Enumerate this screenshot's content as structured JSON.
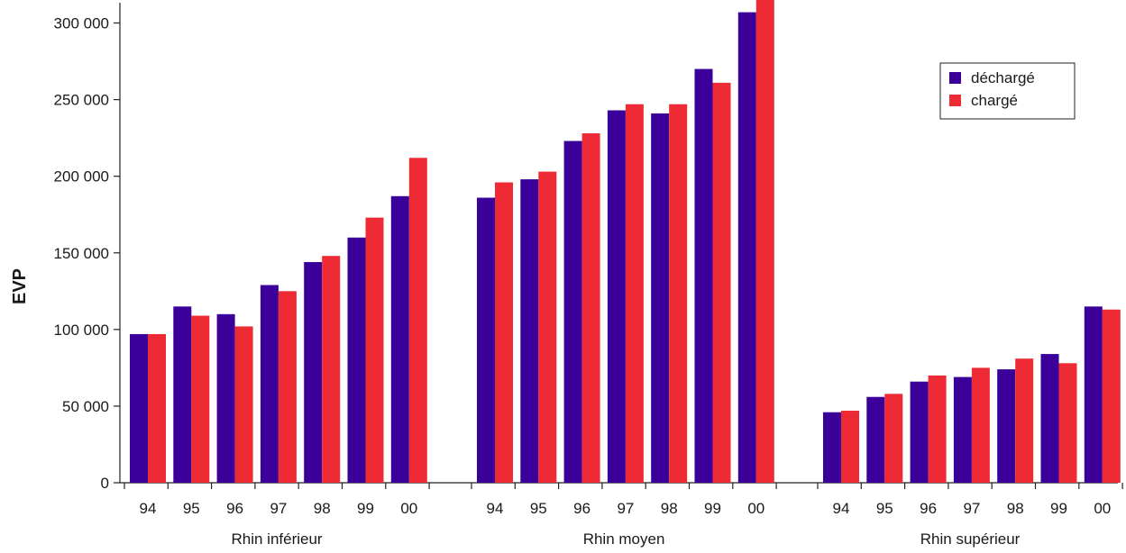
{
  "chart_data": {
    "type": "bar",
    "ylabel": "EVP",
    "ylim": [
      0,
      315000
    ],
    "yticks": [
      0,
      50000,
      100000,
      150000,
      200000,
      250000,
      300000
    ],
    "ytick_labels": [
      "0",
      "50 000",
      "100 000",
      "150 000",
      "200 000",
      "250 000",
      "300 000"
    ],
    "grid": false,
    "legend_position": "top-right",
    "colors": {
      "déchargé": "#3a0099",
      "chargé": "#ee2b35"
    },
    "legend": [
      {
        "name": "déchargé",
        "color": "#3a0099"
      },
      {
        "name": "chargé",
        "color": "#ee2b35"
      }
    ],
    "groups": [
      {
        "name": "Rhin inférieur",
        "categories": [
          "94",
          "95",
          "96",
          "97",
          "98",
          "99",
          "00"
        ],
        "series": [
          {
            "name": "déchargé",
            "values": [
              97000,
              115000,
              110000,
              129000,
              144000,
              160000,
              187000
            ]
          },
          {
            "name": "chargé",
            "values": [
              97000,
              109000,
              102000,
              125000,
              148000,
              173000,
              212000
            ]
          }
        ]
      },
      {
        "name": "Rhin moyen",
        "categories": [
          "94",
          "95",
          "96",
          "97",
          "98",
          "99",
          "00"
        ],
        "series": [
          {
            "name": "déchargé",
            "values": [
              186000,
              198000,
              223000,
              243000,
              241000,
              270000,
              307000
            ]
          },
          {
            "name": "chargé",
            "values": [
              196000,
              203000,
              228000,
              247000,
              247000,
              261000,
              315000
            ]
          }
        ]
      },
      {
        "name": "Rhin supérieur",
        "categories": [
          "94",
          "95",
          "96",
          "97",
          "98",
          "99",
          "00"
        ],
        "series": [
          {
            "name": "déchargé",
            "values": [
              46000,
              56000,
              66000,
              69000,
              74000,
              84000,
              115000
            ]
          },
          {
            "name": "chargé",
            "values": [
              47000,
              58000,
              70000,
              75000,
              81000,
              78000,
              113000
            ]
          }
        ]
      }
    ]
  }
}
